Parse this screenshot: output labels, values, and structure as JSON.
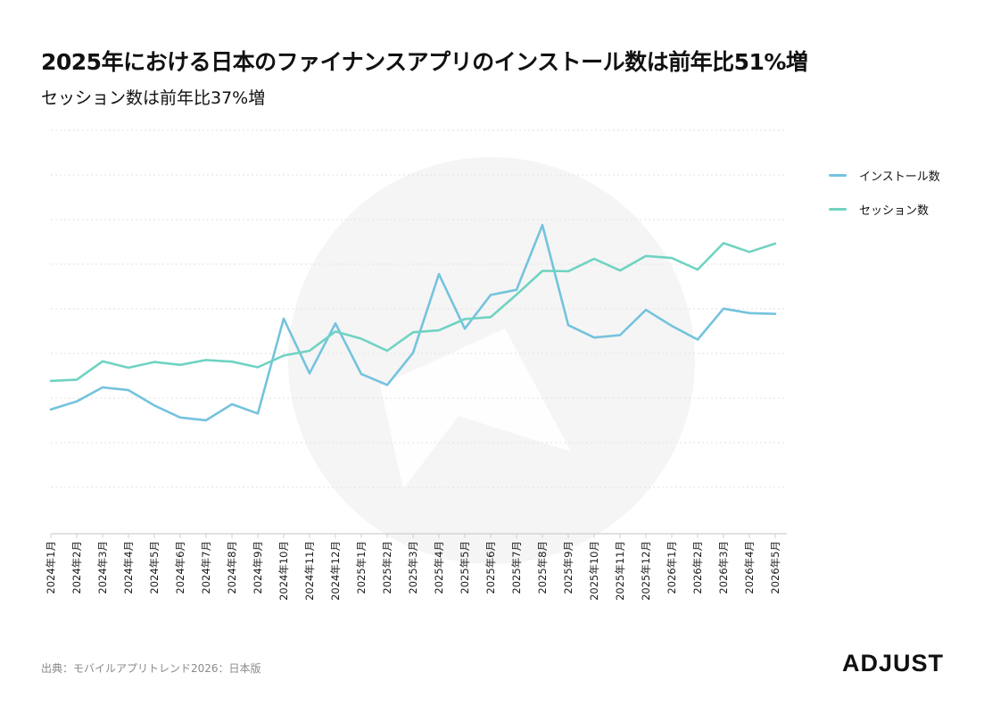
{
  "header": {
    "title": "2025年における日本のファイナンスアプリのインストール数は前年比51%増",
    "subtitle": "セッション数は前年比37%増"
  },
  "footer": {
    "source": "出典：モバイルアプリトレンド2026：日本版",
    "logo_text": "ADJUST"
  },
  "colors": {
    "installs": "#74c3de",
    "sessions": "#6fd3c2",
    "gridline": "#e2e2e2",
    "axis": "#cfcfcf",
    "watermark": "#f5f5f5"
  },
  "chart_data": {
    "type": "line",
    "categories": [
      "2024年1月",
      "2024年2月",
      "2024年3月",
      "2024年4月",
      "2024年5月",
      "2024年6月",
      "2024年7月",
      "2024年8月",
      "2024年9月",
      "2024年10月",
      "2024年11月",
      "2024年12月",
      "2025年1月",
      "2025年2月",
      "2025年3月",
      "2025年4月",
      "2025年5月",
      "2025年6月",
      "2025年7月",
      "2025年8月",
      "2025年9月",
      "2025年10月",
      "2025年11月",
      "2025年12月",
      "2026年1月",
      "2026年2月",
      "2026年3月",
      "2026年4月",
      "2026年5月"
    ],
    "series": [
      {
        "name": "インストール数",
        "color": "#74c3de",
        "values": [
          30.5,
          32.5,
          36.0,
          35.3,
          31.5,
          28.5,
          27.8,
          31.8,
          29.5,
          53.1,
          39.5,
          51.9,
          39.3,
          36.6,
          44.6,
          64.2,
          50.6,
          59.0,
          60.3,
          76.4,
          51.5,
          48.4,
          49.0,
          55.3,
          51.3,
          47.9,
          55.6,
          54.5,
          54.3
        ]
      },
      {
        "name": "セッション数",
        "color": "#6fd3c2",
        "values": [
          37.6,
          37.9,
          42.5,
          40.9,
          42.3,
          41.6,
          42.8,
          42.4,
          41.0,
          43.9,
          45.1,
          49.9,
          48.1,
          45.1,
          49.7,
          50.2,
          53.0,
          53.5,
          59.1,
          65.0,
          64.9,
          68.0,
          65.1,
          68.7,
          68.2,
          65.3,
          71.9,
          69.7,
          71.8
        ]
      }
    ],
    "ylim": [
      0,
      100
    ],
    "y_ticks_labeled": false,
    "grid": true,
    "legend_position": "top-right"
  }
}
